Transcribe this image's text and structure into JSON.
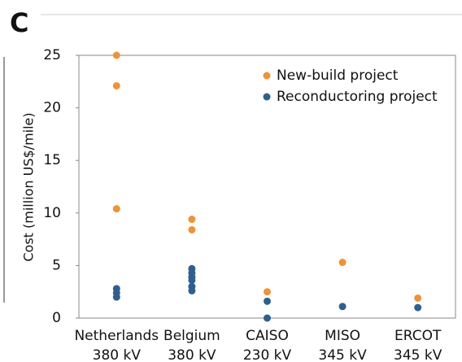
{
  "chart_data": {
    "type": "scatter",
    "panel_label": "C",
    "y_label": "Cost (million US$/mile)",
    "categories": [
      "Netherlands",
      "Belgium",
      "CAISO",
      "MISO",
      "ERCOT"
    ],
    "category_voltages": [
      "380 kV",
      "380 kV",
      "230 kV",
      "345 kV",
      "345 kV"
    ],
    "ylim": [
      0,
      25
    ],
    "yticks": [
      0,
      5,
      10,
      15,
      20,
      25
    ],
    "legend": "upper right",
    "series": [
      {
        "name": "New-build project",
        "color": "#f0923a",
        "x": [
          "Netherlands",
          "Netherlands",
          "Netherlands",
          "Belgium",
          "Belgium",
          "CAISO",
          "MISO",
          "ERCOT"
        ],
        "values": [
          25,
          22.1,
          10.4,
          9.4,
          8.4,
          2.5,
          5.3,
          1.9
        ]
      },
      {
        "name": "Reconductoring project",
        "color": "#2f5f8f",
        "x": [
          "Netherlands",
          "Netherlands",
          "Netherlands",
          "Belgium",
          "Belgium",
          "Belgium",
          "Belgium",
          "Belgium",
          "Belgium",
          "CAISO",
          "CAISO",
          "MISO",
          "ERCOT"
        ],
        "values": [
          2.8,
          2.4,
          2.0,
          4.7,
          4.3,
          3.9,
          3.6,
          3.0,
          2.6,
          1.6,
          0,
          1.1,
          1.0
        ]
      }
    ]
  }
}
